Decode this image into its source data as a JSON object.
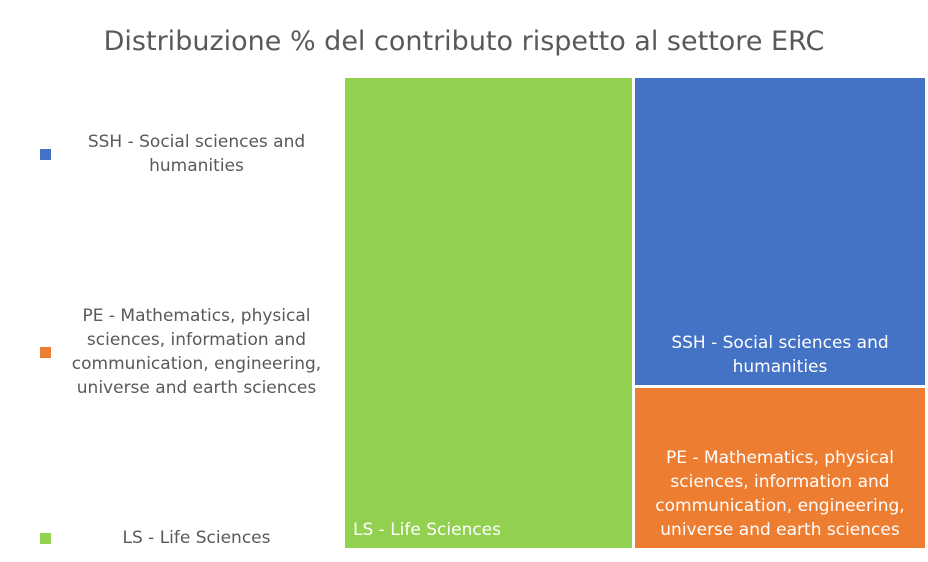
{
  "chart_data": {
    "type": "treemap",
    "title": "Distribuzione % del contributo rispetto al settore ERC",
    "categories": [
      "SSH - Social sciences and humanities",
      "PE - Mathematics, physical sciences, information and communication, engineering, universe and earth sciences",
      "LS - Life Sciences"
    ],
    "values": [
      33,
      17,
      50
    ],
    "colors": [
      "#4472c4",
      "#ed7d31",
      "#92d050"
    ]
  }
}
